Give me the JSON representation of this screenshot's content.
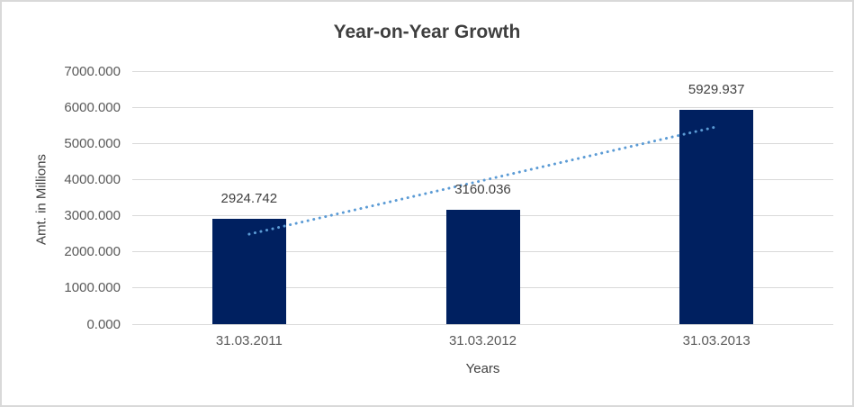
{
  "chart_data": {
    "type": "bar",
    "title": "Year-on-Year Growth",
    "xlabel": "Years",
    "ylabel": "Amt. in Millions",
    "categories": [
      "31.03.2011",
      "31.03.2012",
      "31.03.2013"
    ],
    "values": [
      2924.742,
      3160.036,
      5929.937
    ],
    "data_labels": [
      "2924.742",
      "3160.036",
      "5929.937"
    ],
    "ylim": [
      0,
      7000
    ],
    "y_tick_step": 1000,
    "y_ticks": [
      {
        "value": 0,
        "label": "0.000"
      },
      {
        "value": 1000,
        "label": "1000.000"
      },
      {
        "value": 2000,
        "label": "2000.000"
      },
      {
        "value": 3000,
        "label": "3000.000"
      },
      {
        "value": 4000,
        "label": "4000.000"
      },
      {
        "value": 5000,
        "label": "5000.000"
      },
      {
        "value": 6000,
        "label": "6000.000"
      },
      {
        "value": 7000,
        "label": "7000.000"
      }
    ],
    "grid": "horizontal",
    "legend": "none",
    "bar_color": "#002060",
    "trendline": {
      "type": "linear",
      "style": "dotted",
      "color": "#5b9bd5",
      "start_value": 2490,
      "end_value": 5460
    },
    "colors": {
      "gridline": "#d9d9d9",
      "axis_text": "#595959",
      "label_text": "#404040",
      "title_text": "#3f3f3f",
      "background": "#ffffff",
      "frame_border": "#d9d9d9"
    }
  }
}
